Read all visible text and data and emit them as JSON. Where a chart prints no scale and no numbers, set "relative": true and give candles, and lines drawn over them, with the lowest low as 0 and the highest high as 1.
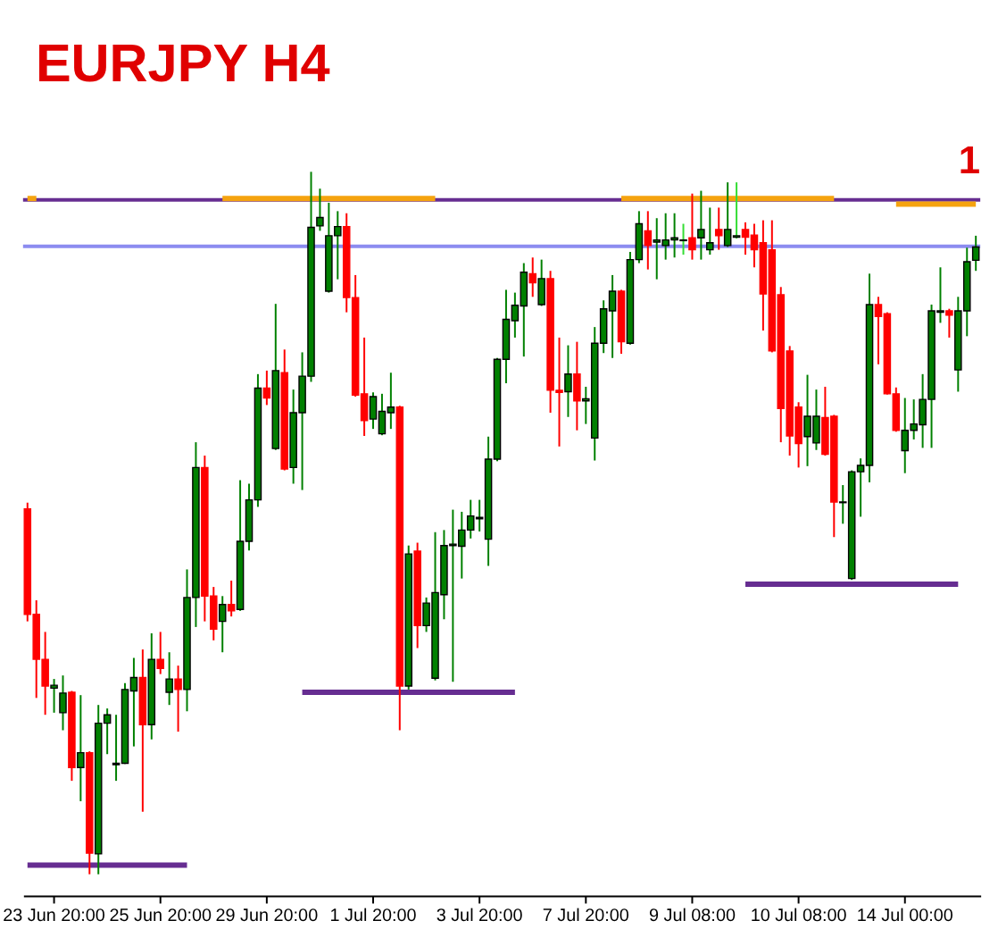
{
  "chart_data": {
    "type": "candlestick",
    "title": "EURJPY H4",
    "relative": true,
    "categories": [
      null,
      null,
      null,
      "23 Jun 20:00",
      null,
      null,
      null,
      null,
      null,
      null,
      null,
      null,
      null,
      null,
      null,
      "25 Jun 20:00",
      null,
      null,
      null,
      null,
      null,
      null,
      null,
      null,
      null,
      null,
      null,
      "29 Jun 20:00",
      null,
      null,
      null,
      null,
      null,
      null,
      null,
      null,
      null,
      null,
      null,
      "1 Jul 20:00",
      null,
      null,
      null,
      null,
      null,
      null,
      null,
      null,
      null,
      null,
      null,
      "3 Jul 20:00",
      null,
      null,
      null,
      null,
      null,
      null,
      null,
      null,
      null,
      null,
      null,
      "7 Jul 20:00",
      null,
      null,
      null,
      null,
      null,
      null,
      null,
      null,
      null,
      null,
      null,
      "9 Jul 08:00",
      null,
      null,
      null,
      null,
      null,
      null,
      null,
      null,
      null,
      null,
      null,
      "10 Jul 08:00",
      null,
      null,
      null,
      null,
      null,
      null,
      null,
      null,
      null,
      null,
      null,
      "14 Jul 00:00",
      null,
      null,
      null,
      null,
      null,
      null,
      null,
      null
    ],
    "ohlc": [
      [
        0.52,
        0.529,
        0.36,
        0.37
      ],
      [
        0.37,
        0.39,
        0.251,
        0.306
      ],
      [
        0.306,
        0.345,
        0.227,
        0.268
      ],
      [
        0.265,
        0.278,
        0.23,
        0.269
      ],
      [
        0.23,
        0.283,
        0.205,
        0.258
      ],
      [
        0.259,
        0.261,
        0.133,
        0.152
      ],
      [
        0.152,
        0.255,
        0.104,
        0.173
      ],
      [
        0.173,
        0.175,
        0,
        0.03
      ],
      [
        0.029,
        0.241,
        0,
        0.215
      ],
      [
        0.215,
        0.236,
        0.171,
        0.227
      ],
      [
        0.156,
        0.227,
        0.133,
        0.158
      ],
      [
        0.158,
        0.272,
        0.157,
        0.263
      ],
      [
        0.261,
        0.308,
        0.182,
        0.28
      ],
      [
        0.28,
        0.32,
        0.089,
        0.213
      ],
      [
        0.213,
        0.343,
        0.192,
        0.306
      ],
      [
        0.306,
        0.345,
        0.285,
        0.293
      ],
      [
        0.259,
        0.316,
        0.241,
        0.278
      ],
      [
        0.278,
        0.297,
        0.203,
        0.263
      ],
      [
        0.263,
        0.434,
        0.232,
        0.394
      ],
      [
        0.394,
        0.615,
        0.352,
        0.579
      ],
      [
        0.579,
        0.596,
        0.36,
        0.396
      ],
      [
        0.396,
        0.409,
        0.333,
        0.349
      ],
      [
        0.36,
        0.396,
        0.316,
        0.384
      ],
      [
        0.384,
        0.418,
        0.367,
        0.375
      ],
      [
        0.377,
        0.561,
        0.375,
        0.474
      ],
      [
        0.474,
        0.556,
        0.461,
        0.533
      ],
      [
        0.533,
        0.712,
        0.523,
        0.692
      ],
      [
        0.692,
        0.717,
        0.668,
        0.678
      ],
      [
        0.606,
        0.812,
        0.604,
        0.717
      ],
      [
        0.714,
        0.747,
        0.575,
        0.577
      ],
      [
        0.579,
        0.69,
        0.556,
        0.657
      ],
      [
        0.657,
        0.743,
        0.547,
        0.709
      ],
      [
        0.709,
        1,
        0.701,
        0.921
      ],
      [
        0.923,
        0.976,
        0.916,
        0.935
      ],
      [
        0.83,
        0.956,
        0.828,
        0.909
      ],
      [
        0.909,
        0.944,
        0.847,
        0.922
      ],
      [
        0.922,
        0.941,
        0.8,
        0.821
      ],
      [
        0.821,
        0.853,
        0.68,
        0.682
      ],
      [
        0.684,
        0.764,
        0.624,
        0.646
      ],
      [
        0.648,
        0.686,
        0.634,
        0.68
      ],
      [
        0.627,
        0.684,
        0.625,
        0.659
      ],
      [
        0.657,
        0.714,
        0.634,
        0.665
      ],
      [
        0.665,
        0.667,
        0.205,
        0.268
      ],
      [
        0.268,
        0.468,
        0.263,
        0.456
      ],
      [
        0.46,
        0.472,
        0.322,
        0.354
      ],
      [
        0.354,
        0.394,
        0.345,
        0.386
      ],
      [
        0.279,
        0.487,
        0.276,
        0.401
      ],
      [
        0.398,
        0.49,
        0.363,
        0.468
      ],
      [
        0.468,
        0.519,
        0.274,
        0.47
      ],
      [
        0.467,
        0.516,
        0.421,
        0.49
      ],
      [
        0.49,
        0.533,
        0.478,
        0.51
      ],
      [
        0.506,
        0.533,
        0.488,
        0.508
      ],
      [
        0.477,
        0.623,
        0.439,
        0.591
      ],
      [
        0.591,
        0.735,
        0.588,
        0.733
      ],
      [
        0.733,
        0.832,
        0.699,
        0.79
      ],
      [
        0.788,
        0.828,
        0.764,
        0.81
      ],
      [
        0.809,
        0.87,
        0.737,
        0.857
      ],
      [
        0.855,
        0.878,
        0.822,
        0.842
      ],
      [
        0.811,
        0.875,
        0.809,
        0.848
      ],
      [
        0.848,
        0.859,
        0.657,
        0.689
      ],
      [
        0.689,
        0.764,
        0.609,
        0.686
      ],
      [
        0.687,
        0.753,
        0.651,
        0.712
      ],
      [
        0.712,
        0.758,
        0.632,
        0.674
      ],
      [
        0.674,
        0.694,
        0.641,
        0.677
      ],
      [
        0.621,
        0.779,
        0.589,
        0.756
      ],
      [
        0.756,
        0.817,
        0.742,
        0.805
      ],
      [
        0.802,
        0.853,
        0.735,
        0.83
      ],
      [
        0.83,
        0.832,
        0.741,
        0.758
      ],
      [
        0.756,
        0.886,
        0.754,
        0.875
      ],
      [
        0.875,
        0.944,
        0.87,
        0.926
      ],
      [
        0.916,
        0.944,
        0.861,
        0.895
      ],
      [
        0.9,
        0.934,
        0.847,
        0.903
      ],
      [
        0.895,
        0.941,
        0.875,
        0.903
      ],
      [
        0.903,
        0.941,
        0.878,
        0.906
      ],
      [
        0.902,
        0.926,
        0.882,
        0.903
      ],
      [
        0.906,
        0.969,
        0.875,
        0.889
      ],
      [
        0.906,
        0.973,
        0.875,
        0.918
      ],
      [
        0.889,
        0.949,
        0.882,
        0.899
      ],
      [
        0.918,
        0.949,
        0.889,
        0.909
      ],
      [
        0.895,
        0.985,
        0.893,
        0.918
      ],
      [
        0.907,
        0.985,
        0.905,
        0.909
      ],
      [
        0.918,
        0.928,
        0.882,
        0.907
      ],
      [
        0.91,
        0.926,
        0.864,
        0.889
      ],
      [
        0.899,
        0.931,
        0.774,
        0.826
      ],
      [
        0.889,
        0.931,
        0.743,
        0.745
      ],
      [
        0.825,
        0.836,
        0.615,
        0.663
      ],
      [
        0.745,
        0.752,
        0.596,
        0.624
      ],
      [
        0.665,
        0.672,
        0.579,
        0.613
      ],
      [
        0.623,
        0.711,
        0.581,
        0.652
      ],
      [
        0.614,
        0.69,
        0.604,
        0.652
      ],
      [
        0.65,
        0.694,
        0.596,
        0.598
      ],
      [
        0.652,
        0.654,
        0.48,
        0.53
      ],
      [
        0.529,
        0.554,
        0.499,
        0.53
      ],
      [
        0.421,
        0.575,
        0.419,
        0.573
      ],
      [
        0.573,
        0.592,
        0.509,
        0.582
      ],
      [
        0.582,
        0.855,
        0.558,
        0.811
      ],
      [
        0.811,
        0.822,
        0.726,
        0.794
      ],
      [
        0.798,
        0.8,
        0.683,
        0.684
      ],
      [
        0.684,
        0.693,
        0.63,
        0.632
      ],
      [
        0.603,
        0.678,
        0.571,
        0.632
      ],
      [
        0.632,
        0.676,
        0.619,
        0.641
      ],
      [
        0.64,
        0.712,
        0.607,
        0.676
      ],
      [
        0.676,
        0.811,
        0.607,
        0.802
      ],
      [
        0.8,
        0.864,
        0.785,
        0.802
      ],
      [
        0.802,
        0.805,
        0.764,
        0.796
      ],
      [
        0.718,
        0.822,
        0.687,
        0.802
      ],
      [
        0.802,
        0.892,
        0.766,
        0.872
      ],
      [
        0.874,
        0.909,
        0.859,
        0.893
      ]
    ],
    "colors": [
      "#ff0000",
      "#ff0000",
      "#ff0000",
      "#008000",
      "#008000",
      "#ff0000",
      "#008000",
      "#ff0000",
      "#008000",
      "#008000",
      "#008000",
      "#008000",
      "#008000",
      "#ff0000",
      "#008000",
      "#ff0000",
      "#008000",
      "#ff0000",
      "#008000",
      "#008000",
      "#ff0000",
      "#ff0000",
      "#008000",
      "#ff0000",
      "#008000",
      "#008000",
      "#008000",
      "#ff0000",
      "#008000",
      "#ff0000",
      "#008000",
      "#008000",
      "#008000",
      "#008000",
      "#008000",
      "#008000",
      "#ff0000",
      "#ff0000",
      "#ff0000",
      "#008000",
      "#008000",
      "#008000",
      "#ff0000",
      "#008000",
      "#ff0000",
      "#008000",
      "#008000",
      "#008000",
      "#008000",
      "#008000",
      "#008000",
      "#008000",
      "#008000",
      "#008000",
      "#008000",
      "#008000",
      "#008000",
      "#ff0000",
      "#008000",
      "#ff0000",
      "#ff0000",
      "#008000",
      "#ff0000",
      "#008000",
      "#008000",
      "#008000",
      "#008000",
      "#ff0000",
      "#008000",
      "#008000",
      "#ff0000",
      "#008000",
      "#008000",
      "#008000",
      "#33dd33",
      "#ff0000",
      "#008000",
      "#008000",
      "#ff0000",
      "#008000",
      "#33dd33",
      "#ff0000",
      "#ff0000",
      "#ff0000",
      "#ff0000",
      "#ff0000",
      "#ff0000",
      "#ff0000",
      "#008000",
      "#008000",
      "#ff0000",
      "#ff0000",
      "#008000",
      "#008000",
      "#008000",
      "#008000",
      "#ff0000",
      "#ff0000",
      "#ff0000",
      "#008000",
      "#008000",
      "#008000",
      "#008000",
      "#008000",
      "#ff0000",
      "#008000",
      "#008000",
      "#008000"
    ],
    "series": [
      {
        "type": "line",
        "color": "#f5a30f",
        "values": [
          0.962,
          0.962,
          null,
          null,
          null,
          null,
          null,
          null,
          null,
          null,
          null,
          null,
          null,
          null,
          null,
          null,
          null,
          null,
          null,
          null,
          null,
          null,
          null,
          null,
          null,
          null,
          null,
          null,
          null,
          null,
          null,
          null,
          null,
          null,
          null,
          null,
          null,
          null,
          null,
          null,
          null,
          null,
          null,
          null,
          null,
          null,
          null,
          null,
          null,
          null,
          null,
          null,
          null,
          null,
          null,
          null,
          null,
          null,
          null,
          null,
          null,
          null,
          null,
          null,
          null,
          null,
          null,
          null,
          null,
          null,
          null,
          null,
          null,
          null,
          null,
          null,
          null,
          null,
          null,
          null,
          null,
          null,
          null,
          null,
          null,
          null,
          null,
          null,
          null,
          null,
          null,
          null,
          null,
          null,
          null,
          null,
          null,
          null,
          null,
          null,
          null,
          null,
          null,
          null,
          null,
          null,
          null,
          null
        ]
      },
      {
        "type": "line",
        "color": "#f5a30f",
        "values": [
          null,
          null,
          null,
          null,
          null,
          null,
          null,
          null,
          null,
          null,
          null,
          null,
          null,
          null,
          null,
          null,
          null,
          null,
          null,
          null,
          null,
          null,
          0.962,
          0.962,
          0.962,
          0.962,
          0.962,
          0.962,
          0.962,
          0.962,
          0.962,
          0.962,
          0.962,
          0.962,
          0.962,
          0.962,
          0.962,
          0.962,
          0.962,
          0.962,
          0.962,
          0.962,
          0.962,
          0.962,
          0.962,
          0.962,
          0.962,
          null,
          null,
          null,
          null,
          null,
          null,
          null,
          null,
          null,
          null,
          null,
          null,
          null,
          null,
          null,
          null,
          null,
          null,
          null,
          null,
          null,
          null,
          null,
          null,
          null,
          null,
          null,
          null,
          null,
          null,
          null,
          null,
          null,
          null,
          null,
          null,
          null,
          null,
          null,
          null,
          null,
          null,
          null,
          null,
          null,
          null,
          null,
          null,
          null,
          null,
          null,
          null,
          null,
          null,
          null,
          null,
          null,
          null,
          null,
          null,
          null
        ]
      },
      {
        "type": "line",
        "color": "#f5a30f",
        "values": [
          null,
          null,
          null,
          null,
          null,
          null,
          null,
          null,
          null,
          null,
          null,
          null,
          null,
          null,
          null,
          null,
          null,
          null,
          null,
          null,
          null,
          null,
          null,
          null,
          null,
          null,
          null,
          null,
          null,
          null,
          null,
          null,
          null,
          null,
          null,
          null,
          null,
          null,
          null,
          null,
          null,
          null,
          null,
          null,
          null,
          null,
          null,
          null,
          null,
          null,
          null,
          null,
          null,
          null,
          null,
          null,
          null,
          null,
          null,
          null,
          null,
          null,
          null,
          null,
          null,
          null,
          null,
          0.962,
          0.962,
          0.962,
          0.962,
          0.962,
          0.962,
          0.962,
          0.962,
          0.962,
          0.962,
          0.962,
          0.962,
          0.962,
          0.962,
          0.962,
          0.962,
          0.962,
          0.962,
          0.962,
          0.962,
          0.962,
          0.962,
          0.962,
          0.962,
          0.962,
          null,
          null,
          null,
          null,
          null,
          null,
          null,
          null,
          null,
          null,
          null,
          null,
          null,
          null,
          null,
          null
        ]
      },
      {
        "type": "line",
        "color": "#f5a30f",
        "values": [
          null,
          null,
          null,
          null,
          null,
          null,
          null,
          null,
          null,
          null,
          null,
          null,
          null,
          null,
          null,
          null,
          null,
          null,
          null,
          null,
          null,
          null,
          null,
          null,
          null,
          null,
          null,
          null,
          null,
          null,
          null,
          null,
          null,
          null,
          null,
          null,
          null,
          null,
          null,
          null,
          null,
          null,
          null,
          null,
          null,
          null,
          null,
          null,
          null,
          null,
          null,
          null,
          null,
          null,
          null,
          null,
          null,
          null,
          null,
          null,
          null,
          null,
          null,
          null,
          null,
          null,
          null,
          null,
          null,
          null,
          null,
          null,
          null,
          null,
          null,
          null,
          null,
          null,
          null,
          null,
          null,
          null,
          null,
          null,
          null,
          null,
          null,
          null,
          null,
          null,
          null,
          null,
          null,
          null,
          null,
          null,
          null,
          null,
          0.954,
          0.954,
          0.954,
          0.954,
          0.954,
          0.954,
          0.954,
          0.954,
          0.954,
          0.954
        ]
      },
      {
        "type": "line",
        "color": "#662d91",
        "values": [
          0.013,
          0.013,
          0.013,
          0.013,
          0.013,
          0.013,
          0.013,
          0.013,
          0.013,
          0.013,
          0.013,
          0.013,
          0.013,
          0.013,
          0.013,
          0.013,
          0.013,
          0.013,
          0.013,
          null,
          null,
          null,
          null,
          null,
          null,
          null,
          null,
          null,
          null,
          null,
          null,
          null,
          null,
          null,
          null,
          null,
          null,
          null,
          null,
          null,
          null,
          null,
          null,
          null,
          null,
          null,
          null,
          null,
          null,
          null,
          null,
          null,
          null,
          null,
          null,
          null,
          null,
          null,
          null,
          null,
          null,
          null,
          null,
          null,
          null,
          null,
          null,
          null,
          null,
          null,
          null,
          null,
          null,
          null,
          null,
          null,
          null,
          null,
          null,
          null,
          null,
          null,
          null,
          null,
          null,
          null,
          null,
          null,
          null,
          null,
          null,
          null,
          null,
          null,
          null,
          null,
          null,
          null,
          null,
          null,
          null,
          null,
          null,
          null,
          null,
          null,
          null,
          null
        ]
      },
      {
        "type": "line",
        "color": "#662d91",
        "values": [
          null,
          null,
          null,
          null,
          null,
          null,
          null,
          null,
          null,
          null,
          null,
          null,
          null,
          null,
          null,
          null,
          null,
          null,
          null,
          null,
          null,
          null,
          null,
          null,
          null,
          null,
          null,
          null,
          null,
          null,
          null,
          0.259,
          0.259,
          0.259,
          0.259,
          0.259,
          0.259,
          0.259,
          0.259,
          0.259,
          0.259,
          0.259,
          0.259,
          0.259,
          0.259,
          0.259,
          0.259,
          0.259,
          0.259,
          0.259,
          0.259,
          0.259,
          0.259,
          0.259,
          0.259,
          0.259,
          null,
          null,
          null,
          null,
          null,
          null,
          null,
          null,
          null,
          null,
          null,
          null,
          null,
          null,
          null,
          null,
          null,
          null,
          null,
          null,
          null,
          null,
          null,
          null,
          null,
          null,
          null,
          null,
          null,
          null,
          null,
          null,
          null,
          null,
          null,
          null,
          null,
          null,
          null,
          null,
          null,
          null,
          null,
          null,
          null,
          null,
          null,
          null,
          null,
          null,
          null,
          null
        ]
      },
      {
        "type": "line",
        "color": "#662d91",
        "values": [
          null,
          null,
          null,
          null,
          null,
          null,
          null,
          null,
          null,
          null,
          null,
          null,
          null,
          null,
          null,
          null,
          null,
          null,
          null,
          null,
          null,
          null,
          null,
          null,
          null,
          null,
          null,
          null,
          null,
          null,
          null,
          null,
          null,
          null,
          null,
          null,
          null,
          null,
          null,
          null,
          null,
          null,
          null,
          null,
          null,
          null,
          null,
          null,
          null,
          null,
          null,
          null,
          null,
          null,
          null,
          null,
          null,
          null,
          null,
          null,
          null,
          null,
          null,
          null,
          null,
          null,
          null,
          null,
          null,
          null,
          null,
          null,
          null,
          null,
          null,
          null,
          null,
          null,
          null,
          null,
          null,
          0.413,
          0.413,
          0.413,
          0.413,
          0.413,
          0.413,
          0.413,
          0.413,
          0.413,
          0.413,
          0.413,
          0.413,
          0.413,
          0.413,
          0.413,
          0.413,
          0.413,
          0.413,
          0.413,
          0.413,
          0.413,
          0.413,
          0.413,
          0.413,
          0.413,
          null,
          null
        ]
      }
    ],
    "ref_lines": [
      {
        "axis": "y",
        "value": 0.96,
        "color": "#662d91"
      },
      {
        "axis": "y",
        "value": 0.894,
        "color": "#8c8cf0"
      }
    ],
    "annotations": [
      "1"
    ]
  }
}
